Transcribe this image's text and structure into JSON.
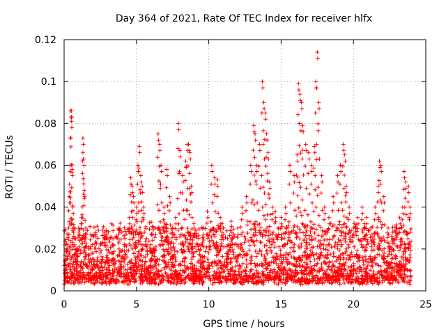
{
  "chart_data": {
    "type": "scatter",
    "title": "Day 364 of 2021, Rate Of TEC Index for receiver hlfx",
    "xlabel": "GPS time / hours",
    "ylabel": "ROTI / TECUs",
    "xlim": [
      0,
      25
    ],
    "ylim": [
      0,
      0.12
    ],
    "xticks": [
      0,
      5,
      10,
      15,
      20,
      25
    ],
    "xtick_labels": [
      "0",
      "5",
      "10",
      "15",
      "20",
      "25"
    ],
    "yticks": [
      0,
      0.02,
      0.04,
      0.06,
      0.08,
      0.1,
      0.12
    ],
    "ytick_labels": [
      "0",
      "0.02",
      "0.04",
      "0.06",
      "0.08",
      "0.1",
      "0.12"
    ],
    "grid": true,
    "marker": "+",
    "color": "#ff0000",
    "series": [
      {
        "name": "ROTI",
        "x": [
          0.1,
          0.2,
          0.3,
          0.35,
          0.4,
          0.45,
          0.5,
          0.5,
          0.55,
          0.6,
          0.7,
          0.8,
          0.9,
          1.0,
          1.2,
          1.3,
          1.3,
          1.35,
          1.4,
          1.5,
          1.7,
          2.0,
          2.3,
          2.6,
          3.0,
          3.4,
          3.8,
          4.2,
          4.5,
          4.6,
          4.7,
          4.8,
          5.0,
          5.1,
          5.2,
          5.3,
          5.4,
          5.5,
          5.7,
          6.0,
          6.3,
          6.5,
          6.6,
          6.7,
          6.9,
          7.1,
          7.3,
          7.5,
          7.7,
          7.9,
          8.0,
          8.2,
          8.4,
          8.5,
          8.6,
          8.7,
          8.8,
          9.0,
          9.3,
          9.6,
          9.9,
          10.2,
          10.4,
          10.6,
          10.8,
          11.0,
          11.3,
          11.6,
          12.0,
          12.3,
          12.6,
          12.9,
          13.1,
          13.2,
          13.3,
          13.5,
          13.7,
          13.8,
          13.9,
          14.0,
          14.1,
          14.2,
          14.4,
          14.6,
          14.8,
          15.0,
          15.3,
          15.6,
          15.9,
          16.1,
          16.2,
          16.3,
          16.4,
          16.5,
          16.7,
          16.9,
          17.1,
          17.3,
          17.4,
          17.5,
          17.6,
          17.8,
          18.0,
          18.3,
          18.6,
          18.9,
          19.1,
          19.3,
          19.4,
          19.5,
          19.7,
          20.0,
          20.3,
          20.6,
          20.9,
          21.2,
          21.5,
          21.7,
          21.8,
          21.9,
          22.1,
          22.4,
          22.7,
          23.0,
          23.2,
          23.4,
          23.5,
          23.6,
          23.8,
          23.9
        ],
        "values": [
          0.015,
          0.022,
          0.03,
          0.045,
          0.06,
          0.086,
          0.086,
          0.081,
          0.058,
          0.04,
          0.025,
          0.018,
          0.02,
          0.03,
          0.035,
          0.073,
          0.066,
          0.063,
          0.048,
          0.03,
          0.02,
          0.018,
          0.015,
          0.014,
          0.016,
          0.018,
          0.02,
          0.025,
          0.035,
          0.054,
          0.05,
          0.045,
          0.04,
          0.06,
          0.069,
          0.055,
          0.05,
          0.04,
          0.025,
          0.022,
          0.03,
          0.075,
          0.07,
          0.06,
          0.04,
          0.058,
          0.045,
          0.03,
          0.035,
          0.08,
          0.067,
          0.055,
          0.062,
          0.07,
          0.07,
          0.066,
          0.05,
          0.03,
          0.025,
          0.03,
          0.038,
          0.06,
          0.054,
          0.053,
          0.035,
          0.03,
          0.025,
          0.028,
          0.03,
          0.04,
          0.045,
          0.06,
          0.079,
          0.075,
          0.06,
          0.07,
          0.1,
          0.09,
          0.085,
          0.075,
          0.066,
          0.052,
          0.04,
          0.038,
          0.03,
          0.035,
          0.04,
          0.06,
          0.055,
          0.065,
          0.099,
          0.094,
          0.09,
          0.079,
          0.07,
          0.066,
          0.06,
          0.069,
          0.1,
          0.114,
          0.09,
          0.055,
          0.04,
          0.035,
          0.045,
          0.055,
          0.06,
          0.07,
          0.065,
          0.05,
          0.04,
          0.03,
          0.035,
          0.04,
          0.035,
          0.03,
          0.04,
          0.05,
          0.062,
          0.06,
          0.045,
          0.03,
          0.028,
          0.03,
          0.035,
          0.04,
          0.057,
          0.052,
          0.05,
          0.04
        ]
      }
    ],
    "dense_band": {
      "description_free": true,
      "x_range": [
        0,
        24
      ],
      "baseline_min": 0.003,
      "typical_max": 0.03,
      "count": 2600
    }
  }
}
